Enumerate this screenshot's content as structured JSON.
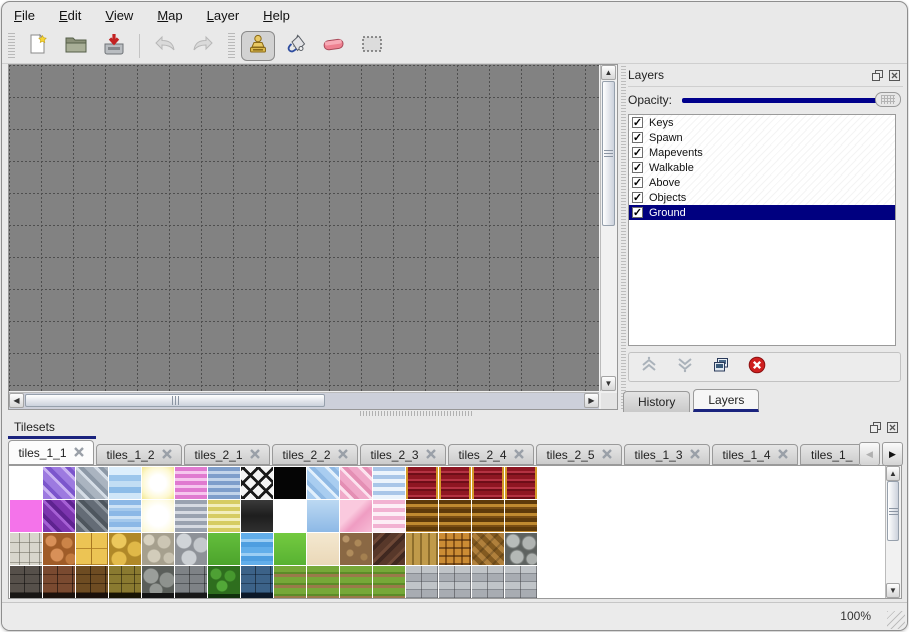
{
  "window": {
    "status_zoom": "100%"
  },
  "menu": {
    "items": [
      "File",
      "Edit",
      "View",
      "Map",
      "Layer",
      "Help"
    ]
  },
  "toolbar": {
    "groups": [
      {
        "buttons": [
          {
            "icon": "new-file",
            "name": "new"
          },
          {
            "icon": "open-folder",
            "name": "open"
          },
          {
            "icon": "save",
            "name": "save"
          },
          {
            "sep": true
          },
          {
            "icon": "undo",
            "name": "undo",
            "disabled": true
          },
          {
            "icon": "redo",
            "name": "redo",
            "disabled": true
          }
        ]
      },
      {
        "buttons": [
          {
            "icon": "stamp",
            "name": "stamp-tool",
            "active": true
          },
          {
            "icon": "fill",
            "name": "fill-tool"
          },
          {
            "icon": "eraser",
            "name": "eraser-tool"
          },
          {
            "icon": "select",
            "name": "select-tool"
          }
        ]
      }
    ]
  },
  "layers_panel": {
    "title": "Layers",
    "opacity_label": "Opacity:",
    "layers": [
      {
        "label": "Keys",
        "checked": true
      },
      {
        "label": "Spawn",
        "checked": true
      },
      {
        "label": "Mapevents",
        "checked": true
      },
      {
        "label": "Walkable",
        "checked": true
      },
      {
        "label": "Above",
        "checked": true
      },
      {
        "label": "Objects",
        "checked": true
      },
      {
        "label": "Ground",
        "checked": true,
        "selected": true
      }
    ],
    "buttons": [
      {
        "icon": "move-up",
        "disabled": true
      },
      {
        "icon": "move-down",
        "disabled": true
      },
      {
        "icon": "duplicate",
        "disabled": false
      },
      {
        "icon": "delete",
        "disabled": false
      }
    ],
    "tabs": [
      {
        "label": "History",
        "active": false
      },
      {
        "label": "Layers",
        "active": true
      }
    ]
  },
  "tilesets_panel": {
    "title": "Tilesets",
    "tabs": [
      {
        "label": "tiles_1_1",
        "active": true
      },
      {
        "label": "tiles_1_2"
      },
      {
        "label": "tiles_2_1"
      },
      {
        "label": "tiles_2_2"
      },
      {
        "label": "tiles_2_3"
      },
      {
        "label": "tiles_2_4"
      },
      {
        "label": "tiles_2_5"
      },
      {
        "label": "tiles_1_3"
      },
      {
        "label": "tiles_1_4"
      },
      {
        "label": "tiles_1_",
        "truncated": true
      }
    ]
  },
  "palette": {
    "tile_defs": {
      "W": {
        "n": "empty-white",
        "bg": "#ffffff"
      },
      "PD": {
        "n": "purple-diagonal",
        "bg": "repeating-linear-gradient(45deg,#9d7ae0 0 7px,#c9b2f2 7px 10px,#7b55cc 10px 14px)"
      },
      "GD": {
        "n": "gray-diagonal",
        "bg": "repeating-linear-gradient(45deg,#aab4c0 0 7px,#d5dde6 7px 10px,#8c98a6 10px 14px)"
      },
      "WA": {
        "n": "water-light",
        "bg": "linear-gradient(180deg,#dceefc 0 8px,#9cc6ec 8px 14px,#c2def4 14px 20px,#8cbce8 20px 26px,#cfe6f8 26px 32px)"
      },
      "GL": {
        "n": "glow-yellow",
        "bg": "radial-gradient(circle at 50% 50%,#ffffff 0 8px,#fdf8d0 16px,#f4e896 22px)"
      },
      "PS": {
        "n": "pink-stripes",
        "bg": "repeating-linear-gradient(180deg,#e07ad0 0 4px,#f6c6ee 4px 7px)"
      },
      "BS": {
        "n": "blue-stripes",
        "bg": "repeating-linear-gradient(180deg,#7e9ecb 0 4px,#c2d4ea 4px 7px)"
      },
      "LT": {
        "n": "lattice",
        "bg": "repeating-linear-gradient(45deg,#1a1a1a 0 3px,transparent 3px 11px),repeating-linear-gradient(135deg,#1a1a1a 0 3px,transparent 3px 11px),#f4f4f4"
      },
      "BK": {
        "n": "black",
        "bg": "#050505"
      },
      "LBD": {
        "n": "lightblue-diagonal",
        "bg": "repeating-linear-gradient(45deg,#a9cdf0 0 7px,#e2f0fc 7px 10px,#8fb9e4 10px 14px)"
      },
      "PKD": {
        "n": "pink-diagonal",
        "bg": "repeating-linear-gradient(45deg,#f0a9c9 0 7px,#fce2ee 7px 10px,#e48fb4 10px 14px)"
      },
      "BW": {
        "n": "blue-wavy",
        "bg": "repeating-linear-gradient(180deg,#a9c6e8 0 4px,#ecf4fc 4px 8px)"
      },
      "RC": {
        "n": "red-carpet",
        "bg": "linear-gradient(90deg,#d49a28 0 2px,transparent 2px 30px,#d49a28 30px),repeating-linear-gradient(180deg,#8e1622 0 4px,#b43242 4px 6px,#6e0e18 6px 8px)"
      },
      "MG": {
        "n": "magenta",
        "bg": "#f473ea"
      },
      "DPD": {
        "n": "darkpurple-diagonal",
        "bg": "repeating-linear-gradient(45deg,#7c35ae 0 7px,#a55fd4 7px 10px,#5e2390 10px 14px)"
      },
      "DGD": {
        "n": "darkgray-diagonal",
        "bg": "repeating-linear-gradient(45deg,#646c76 0 7px,#8e969e 7px 10px,#4e565e 10px 14px)"
      },
      "WA2": {
        "n": "water-ripple",
        "bg": "repeating-linear-gradient(180deg,#8cb8e6 0 5px,#cde2f5 5px 8px,#a5c9ec 8px 11px)"
      },
      "GL2": {
        "n": "glow-pale",
        "bg": "radial-gradient(circle at 50% 50%,#ffffff 0 10px,#fdfae0 18px,#f8f2c2 24px)"
      },
      "GS": {
        "n": "gray-stripes",
        "bg": "repeating-linear-gradient(180deg,#9aa2b0 0 4px,#d6dae2 4px 7px)"
      },
      "YS": {
        "n": "yellow-stripes",
        "bg": "repeating-linear-gradient(180deg,#d6cc62 0 4px,#f2eebc 4px 7px)"
      },
      "MT": {
        "n": "metal-panel",
        "bg": "linear-gradient(180deg,#3a3a3a,#1e1e1e 50%,#303030)"
      },
      "LB": {
        "n": "lightblue-solid",
        "bg": "linear-gradient(180deg,#bcd9f2,#8db9e6)"
      },
      "PK": {
        "n": "pink-swirl",
        "bg": "linear-gradient(135deg,#fac9de 0 40%,#ef9cc2 60%,#f7bcd6)"
      },
      "PW": {
        "n": "pink-wavy",
        "bg": "repeating-linear-gradient(180deg,#f2b2d2 0 4px,#fdeef6 4px 8px)"
      },
      "GC": {
        "n": "gold-carpet",
        "bg": "repeating-linear-gradient(180deg,#5e3a0a 0 4px,#c08a30 4px 7px,#7a4e14 7px 9px)"
      },
      "PV": {
        "n": "stone-pavement",
        "bg": "repeating-linear-gradient(90deg,transparent 0 9px,rgba(100,98,88,.55) 9px 10px),repeating-linear-gradient(180deg,#d8d6cc 0 9px,#9e9c90 9px 10px)"
      },
      "CB": {
        "n": "cobblestone-orange",
        "bg": "radial-gradient(circle at 8px 8px,#d89058 0 5px,transparent 6px),radial-gradient(circle at 24px 10px,#cc8448 0 5px,transparent 6px),radial-gradient(circle at 14px 22px,#d89058 0 6px,transparent 7px),radial-gradient(circle at 28px 26px,#c47c40 0 5px,transparent 6px),#a05c28"
      },
      "YT": {
        "n": "yellow-tiles",
        "bg": "repeating-linear-gradient(90deg,transparent 0 15px,#a87820 15px 16px),repeating-linear-gradient(180deg,#ecc454 0 15px,#b8882c 15px 16px)"
      },
      "YP": {
        "n": "yellow-stone-path",
        "bg": "radial-gradient(circle at 10px 8px,#ecc85c 0 7px,transparent 8px),radial-gradient(circle at 26px 16px,#e0b848 0 7px,transparent 8px),radial-gradient(circle at 10px 26px,#e4bc4c 0 7px,transparent 8px),#b08828"
      },
      "PB": {
        "n": "pebbles",
        "bg": "radial-gradient(circle at 7px 7px,#d8d2c0 0 5px,transparent 6px),radial-gradient(circle at 22px 9px,#ccc6b4 0 6px,transparent 7px),radial-gradient(circle at 12px 23px,#d2ccba 0 6px,transparent 7px),radial-gradient(circle at 27px 25px,#c8c2b0 0 5px,transparent 6px),#a6a08e"
      },
      "ST": {
        "n": "gray-stones",
        "bg": "radial-gradient(circle at 9px 8px,#d0d4d8 0 7px,transparent 8px),radial-gradient(circle at 26px 12px,#c4c8cc 0 7px,transparent 8px),radial-gradient(circle at 14px 25px,#ccd0d4 0 7px,transparent 8px),#8e9298"
      },
      "GR": {
        "n": "grass",
        "bg": "linear-gradient(180deg,#64be3c,#4ca42c)"
      },
      "WB": {
        "n": "water-blue",
        "bg": "repeating-linear-gradient(180deg,#62aeea 0 6px,#9ccef4 6px 9px,#4e9ee0 9px 14px)"
      },
      "GR2": {
        "n": "grass-bright",
        "bg": "linear-gradient(180deg,#74ca40,#58b232)"
      },
      "SD": {
        "n": "sand",
        "bg": "linear-gradient(180deg,#f4e8d0,#ead8b8)"
      },
      "GV": {
        "n": "gravel-path",
        "bg": "radial-gradient(circle at 6px 6px,#b89468 0 3px,transparent 4px),radial-gradient(circle at 18px 10px,#ac8858 0 3px,transparent 4px),radial-gradient(circle at 10px 20px,#b08c5c 0 3px,transparent 4px),radial-gradient(circle at 24px 24px,#a48050 0 3px,transparent 4px),#8a6844"
      },
      "SH": {
        "n": "wood-shingles",
        "bg": "repeating-linear-gradient(135deg,#58382a 0 6px,#6e4836 6px 9px,#402820 9px 13px)"
      },
      "PL": {
        "n": "wood-planks",
        "bg": "repeating-linear-gradient(90deg,#c09a4a 0 6px,#8e6e2c 6px 8px)"
      },
      "BKT": {
        "n": "basket-weave",
        "bg": "repeating-linear-gradient(0deg,rgba(60,30,8,.55) 0 2px,transparent 2px 8px),repeating-linear-gradient(90deg,#cc8c34 0 6px,#8a5518 6px 8px)"
      },
      "HB": {
        "n": "herringbone-wood",
        "bg": "repeating-linear-gradient(135deg,rgba(0,0,0,.18) 0 2px,transparent 2px 9px),repeating-linear-gradient(45deg,#b0803c 0 5px,#835a20 5px 10px)"
      },
      "LG": {
        "n": "log-ends",
        "bg": "radial-gradient(circle at 8px 8px,#b8bcba 0 6px,#787c7a 7px,transparent 8px),radial-gradient(circle at 24px 10px,#b0b4b2 0 6px,#747876 7px,transparent 8px),radial-gradient(circle at 12px 24px,#b4b8b6 0 6px,#767a78 7px,transparent 8px),radial-gradient(circle at 27px 26px,#acb0ae 0 5px,#707472 6px,transparent 7px),#5e6260"
      },
      "WL1": {
        "n": "wall-darkgray",
        "bg": "linear-gradient(0deg,#181614 0 5px,transparent 5px),repeating-linear-gradient(90deg,transparent 0 14px,rgba(0,0,0,.5) 14px 15px),repeating-linear-gradient(180deg,#56504a 0 8px,#332f2b 8px 9px)"
      },
      "WL2": {
        "n": "wall-brown",
        "bg": "linear-gradient(0deg,#1c120c 0 5px,transparent 5px),repeating-linear-gradient(90deg,transparent 0 14px,rgba(0,0,0,.5) 14px 15px),repeating-linear-gradient(180deg,#7a4a30 0 8px,#4e2c1a 8px 9px)"
      },
      "WL3": {
        "n": "wall-midbrown",
        "bg": "linear-gradient(0deg,#1a100a 0 5px,transparent 5px),repeating-linear-gradient(90deg,transparent 0 14px,rgba(0,0,0,.5) 14px 15px),repeating-linear-gradient(180deg,#6e4c22 0 8px,#462e12 8px 9px)"
      },
      "WL4": {
        "n": "wall-olive-stone",
        "bg": "linear-gradient(0deg,#181404 0 5px,transparent 5px),repeating-linear-gradient(90deg,transparent 0 12px,rgba(0,0,0,.45) 12px 13px),repeating-linear-gradient(180deg,#8a7a30 0 8px,#5a4c18 8px 9px)"
      },
      "WL5": {
        "n": "wall-boulder",
        "bg": "linear-gradient(0deg,#141414 0 5px,transparent 5px),radial-gradient(circle at 9px 10px,#9a9e9a 0 7px,transparent 8px),radial-gradient(circle at 25px 14px,#8e928e 0 7px,transparent 8px),radial-gradient(circle at 14px 24px,#949894 0 6px,transparent 7px),#5a5e5a"
      },
      "WL6": {
        "n": "wall-graybrick",
        "bg": "linear-gradient(0deg,#181818 0 5px,transparent 5px),repeating-linear-gradient(90deg,transparent 0 14px,rgba(0,0,0,.4) 14px 15px),repeating-linear-gradient(180deg,#7e8286 0 8px,#54585c 8px 9px)"
      },
      "HG": {
        "n": "hedge",
        "bg": "linear-gradient(0deg,#10300c 0 4px,transparent 4px),radial-gradient(circle at 8px 8px,#4ea034 0 5px,transparent 6px),radial-gradient(circle at 22px 10px,#46982e 0 5px,transparent 6px),radial-gradient(circle at 14px 20px,#52a838 0 5px,transparent 6px),#2e6e1e"
      },
      "WL7": {
        "n": "wall-blue",
        "bg": "linear-gradient(0deg,#0c1828 0 5px,transparent 5px),repeating-linear-gradient(90deg,transparent 0 14px,rgba(0,0,0,.45) 14px 15px),repeating-linear-gradient(180deg,#3c6288 0 8px,#24405e 8px 9px)"
      },
      "FM": {
        "n": "farm-rows",
        "bg": "repeating-linear-gradient(180deg,#76a838 0 6px,#5c8c28 6px 8px,#9a7a4a 8px 11px)"
      },
      "GB": {
        "n": "stone-brick-light",
        "bg": "repeating-linear-gradient(90deg,transparent 0 15px,rgba(60,60,64,.5) 15px 16px),repeating-linear-gradient(180deg,#c0c4c8 0 7px,#888c92 7px 8px,#a8acb2 8px 15px,#84888e 15px 16px)"
      }
    },
    "rows": [
      [
        "W",
        "PD",
        "GD",
        "WA",
        "GL",
        "PS",
        "BS",
        "LT",
        "BK",
        "LBD",
        "PKD",
        "BW",
        "RC",
        "RC",
        "RC",
        "RC"
      ],
      [
        "MG",
        "DPD",
        "DGD",
        "WA2",
        "GL2",
        "GS",
        "YS",
        "MT",
        "W",
        "LB",
        "PK",
        "PW",
        "GC",
        "GC",
        "GC",
        "GC"
      ],
      [
        "PV",
        "CB",
        "YT",
        "YP",
        "PB",
        "ST",
        "GR",
        "WB",
        "GR2",
        "SD",
        "GV",
        "SH",
        "PL",
        "BKT",
        "HB",
        "LG"
      ],
      [
        "WL1",
        "WL2",
        "WL3",
        "WL4",
        "WL5",
        "WL6",
        "HG",
        "WL7",
        "FM",
        "FM",
        "FM",
        "FM",
        "GB",
        "GB",
        "GB",
        "GB"
      ]
    ]
  },
  "colors": {
    "selection_navy": "#000080",
    "canvas_gray": "#828282",
    "tab_underline": "#1a237e",
    "slider_track": "#00008c"
  }
}
